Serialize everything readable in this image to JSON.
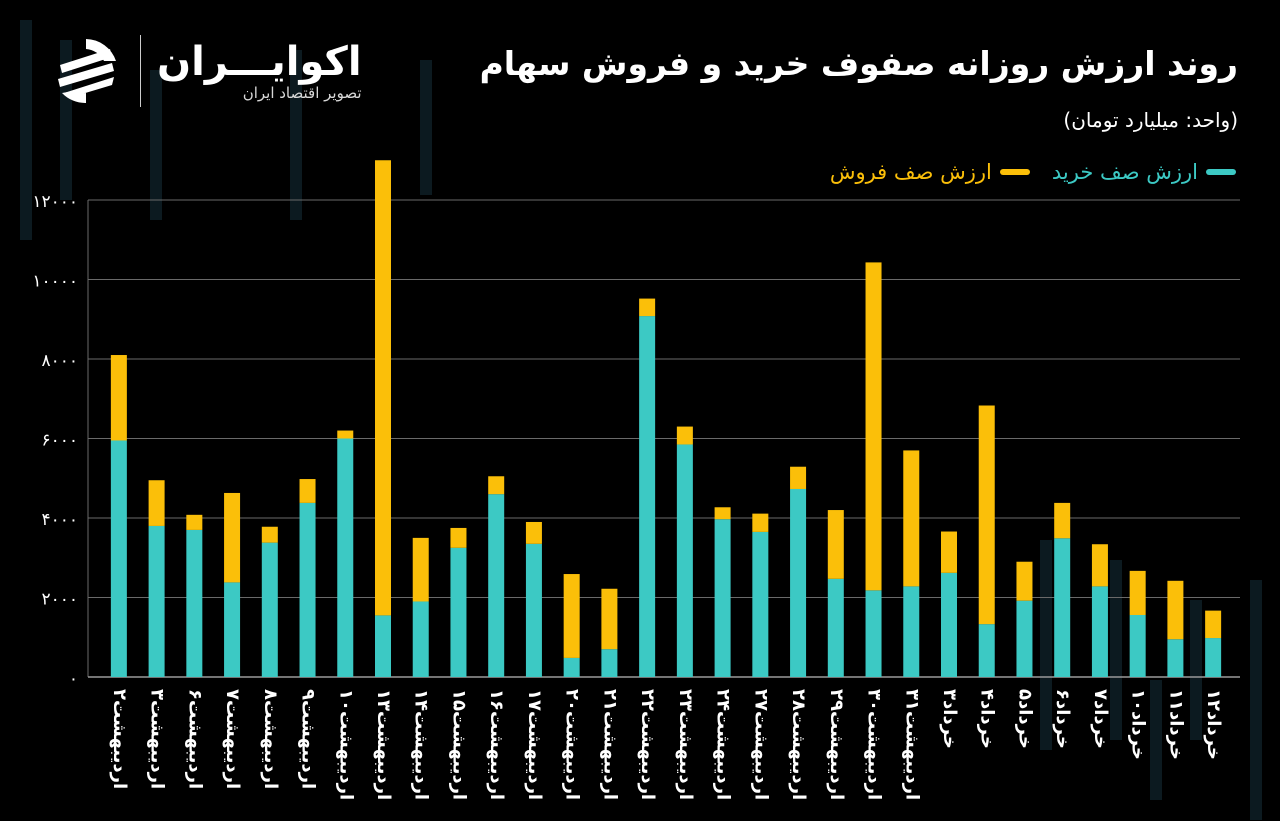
{
  "header": {
    "title": "روند ارزش روزانه صفوف خرید و فروش سهام",
    "unit": "(واحد: میلیارد تومان)"
  },
  "logo": {
    "name": "اکوایـــران",
    "tagline": "تصویر اقتصاد ایران",
    "mark": "ecoiran-logo-mark"
  },
  "colors": {
    "background": "#000000",
    "buy": "#3cc9c4",
    "sell": "#fbbf09",
    "grid": "#6a6a6a",
    "text": "#ffffff"
  },
  "chart_data": {
    "type": "bar",
    "stacked": true,
    "title": "روند ارزش روزانه صفوف خرید و فروش سهام",
    "ylabel": "",
    "xlabel": "",
    "ylim": [
      0,
      12000
    ],
    "yticks": [
      "۰",
      "۲۰۰۰",
      "۴۰۰۰",
      "۶۰۰۰",
      "۸۰۰۰",
      "۱۰۰۰۰",
      "۱۲۰۰۰"
    ],
    "grid": true,
    "legend_position": "top-right",
    "categories": [
      "اردیبهشت۲",
      "اردیبهشت۳",
      "اردیبهشت۶",
      "اردیبهشت۷",
      "اردیبهشت۸",
      "اردیبهشت۹",
      "اردیبهشت۱۰",
      "اردیبهشت۱۳",
      "اردیبهشت۱۴",
      "اردیبهشت۱۵",
      "اردیبهشت۱۶",
      "اردیبهشت۱۷",
      "اردیبهشت۲۰",
      "اردیبهشت۲۱",
      "اردیبهشت۲۲",
      "اردیبهشت۲۳",
      "اردیبهشت۲۴",
      "اردیبهشت۲۷",
      "اردیبهشت۲۸",
      "اردیبهشت۲۹",
      "اردیبهشت۳۰",
      "اردیبهشت۳۱",
      "خرداد۳",
      "خرداد۴",
      "خرداد۵",
      "خرداد۶",
      "خرداد۷",
      "خرداد۱۰",
      "خرداد۱۱",
      "خرداد۱۲"
    ],
    "series": [
      {
        "name": "ارزش صف خرید",
        "values": [
          5950,
          3800,
          3700,
          2380,
          3380,
          4380,
          6000,
          1550,
          1900,
          3250,
          4600,
          3350,
          480,
          700,
          9080,
          5850,
          3970,
          3650,
          4730,
          2470,
          2180,
          2280,
          2620,
          1330,
          1920,
          3490,
          2280,
          1560,
          950,
          980
        ]
      },
      {
        "name": "ارزش صف فروش",
        "values": [
          2150,
          1150,
          380,
          2250,
          400,
          600,
          200,
          11450,
          1600,
          500,
          450,
          550,
          2110,
          1520,
          440,
          450,
          300,
          460,
          560,
          1730,
          8250,
          3420,
          1040,
          5500,
          980,
          890,
          1060,
          1110,
          1470,
          690
        ]
      }
    ]
  }
}
